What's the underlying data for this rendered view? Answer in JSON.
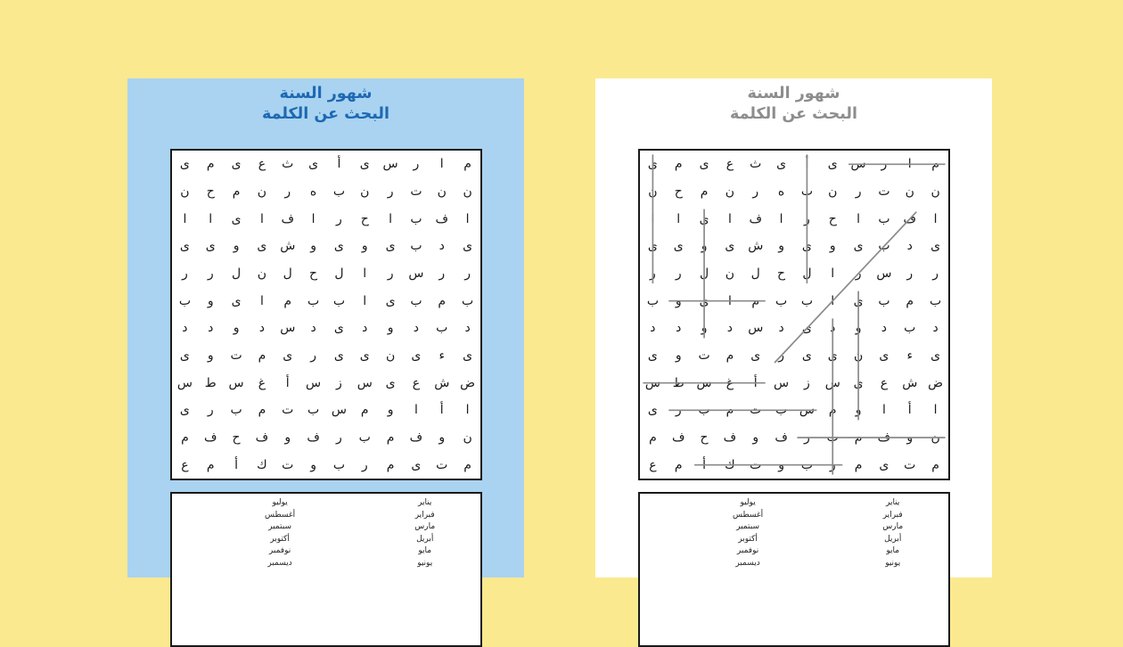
{
  "page": {
    "background_color": "#fbe98f"
  },
  "title": {
    "line1": "شهور السنة",
    "line2": "البحث عن الكلمة"
  },
  "cards": [
    {
      "variant": "worksheet-blue",
      "background": "#a9d3f0",
      "title_color": "#1d68b3",
      "show_answers": false
    },
    {
      "variant": "answer-key-white",
      "background": "#ffffff",
      "title_color": "#8d8d8d",
      "show_answers": true
    }
  ],
  "grid": {
    "rows": 12,
    "cols": 12,
    "note": "letters given in left-to-right display order; puzzle reads right-to-left",
    "letters_ltr": [
      [
        "ى",
        "م",
        "ى",
        "ع",
        "ث",
        "ى",
        "أ",
        "ى",
        "س",
        "ر",
        "ا",
        "م"
      ],
      [
        "ن",
        "ح",
        "م",
        "ن",
        "ر",
        "ه",
        "ب",
        "ن",
        "ر",
        "ت",
        "ن",
        "ن"
      ],
      [
        "ا",
        "ا",
        "ى",
        "ا",
        "ف",
        "ا",
        "ر",
        "ح",
        "ا",
        "ب",
        "ف",
        "ا"
      ],
      [
        "ى",
        "ى",
        "و",
        "ى",
        "ش",
        "و",
        "ى",
        "و",
        "ى",
        "ب",
        "د",
        "ى"
      ],
      [
        "ر",
        "ر",
        "ل",
        "ن",
        "ل",
        "ح",
        "ل",
        "ا",
        "ر",
        "س",
        "ر",
        "ر"
      ],
      [
        "ب",
        "و",
        "ى",
        "ا",
        "م",
        "ب",
        "ب",
        "ا",
        "ى",
        "ب",
        "م",
        "ب"
      ],
      [
        "د",
        "د",
        "و",
        "د",
        "س",
        "د",
        "ى",
        "د",
        "و",
        "د",
        "ب",
        "د"
      ],
      [
        "ى",
        "و",
        "ت",
        "م",
        "ى",
        "ر",
        "ى",
        "ى",
        "ن",
        "ى",
        "ء",
        "ى"
      ],
      [
        "س",
        "ط",
        "س",
        "غ",
        "أ",
        "س",
        "ز",
        "س",
        "ى",
        "ع",
        "ش",
        "ض"
      ],
      [
        "ى",
        "ر",
        "ب",
        "م",
        "ت",
        "ب",
        "س",
        "م",
        "و",
        "ا",
        "أ",
        "ا"
      ],
      [
        "م",
        "ف",
        "ح",
        "ف",
        "و",
        "ف",
        "ر",
        "ب",
        "م",
        "ف",
        "و",
        "ن"
      ],
      [
        "ع",
        "م",
        "أ",
        "ك",
        "ت",
        "و",
        "ب",
        "ر",
        "م",
        "ى",
        "ت",
        "م"
      ]
    ]
  },
  "word_list": {
    "right_column": [
      "يناير",
      "فبراير",
      "مارس",
      "أبريل",
      "مايو",
      "يونيو"
    ],
    "left_column": [
      "يوليو",
      "أغسطس",
      "سبتمبر",
      "أكتوبر",
      "نوفمبر",
      "ديسمبر"
    ]
  },
  "answer_lines": [
    {
      "word": "مارس",
      "from_row": 1,
      "from_col": 12,
      "to_row": 1,
      "to_col": 9
    },
    {
      "word": "يناير",
      "from_row": 1,
      "from_col": 1,
      "to_row": 5,
      "to_col": 1
    },
    {
      "word": "أبريل",
      "from_row": 1,
      "from_col": 7,
      "to_row": 5,
      "to_col": 7
    },
    {
      "word": "يوليو",
      "from_row": 3,
      "from_col": 3,
      "to_row": 7,
      "to_col": 3
    },
    {
      "word": "فبراير",
      "from_row": 3,
      "from_col": 11,
      "to_row": 8,
      "to_col": 6
    },
    {
      "word": "مايو",
      "from_row": 6,
      "from_col": 5,
      "to_row": 6,
      "to_col": 2
    },
    {
      "word": "يونيو",
      "from_row": 6,
      "from_col": 9,
      "to_row": 10,
      "to_col": 9
    },
    {
      "word": "ديسمبر",
      "from_row": 7,
      "from_col": 8,
      "to_row": 12,
      "to_col": 8
    },
    {
      "word": "أغسطس",
      "from_row": 9,
      "from_col": 5,
      "to_row": 9,
      "to_col": 1
    },
    {
      "word": "سبتمبر",
      "from_row": 10,
      "from_col": 7,
      "to_row": 10,
      "to_col": 2
    },
    {
      "word": "نوفمبر",
      "from_row": 11,
      "from_col": 12,
      "to_row": 11,
      "to_col": 7
    },
    {
      "word": "أكتوبر",
      "from_row": 12,
      "from_col": 3,
      "to_row": 12,
      "to_col": 8
    }
  ],
  "colors": {
    "answer_line": "#8a8a8a",
    "grid_border": "#1a1a1a",
    "letter": "#1a1a1a"
  }
}
